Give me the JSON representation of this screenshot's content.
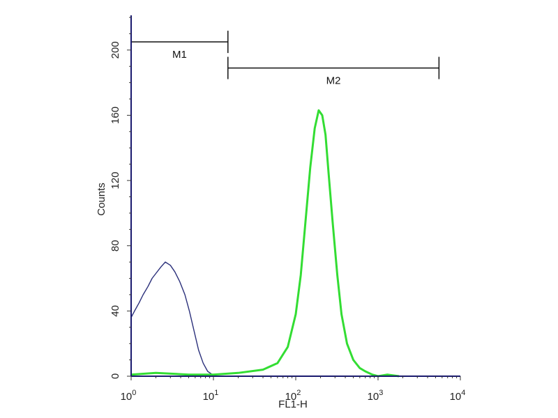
{
  "chart_data": {
    "type": "line",
    "xlabel": "FL1-H",
    "ylabel": "Counts",
    "x_scale": "log",
    "xlim": [
      1,
      10000
    ],
    "ylim": [
      0,
      220
    ],
    "x_ticks": [
      {
        "value": 1,
        "base": "10",
        "exp": "0"
      },
      {
        "value": 10,
        "base": "10",
        "exp": "1"
      },
      {
        "value": 100,
        "base": "10",
        "exp": "2"
      },
      {
        "value": 1000,
        "base": "10",
        "exp": "3"
      },
      {
        "value": 10000,
        "base": "10",
        "exp": "4"
      }
    ],
    "y_ticks": [
      "0",
      "40",
      "80",
      "120",
      "160",
      "200"
    ],
    "grid": false,
    "series": [
      {
        "color": "#2a2f7a",
        "x": [
          1.0,
          1.1,
          1.25,
          1.4,
          1.6,
          1.8,
          2.0,
          2.3,
          2.6,
          3.0,
          3.4,
          3.9,
          4.5,
          5.1,
          5.8,
          6.6,
          7.5,
          8.5,
          9.7,
          11.0,
          12.5
        ],
        "y": [
          36,
          40,
          45,
          50,
          55,
          60,
          63,
          67,
          70,
          68,
          64,
          58,
          50,
          40,
          28,
          16,
          8,
          3,
          1,
          0,
          0
        ]
      },
      {
        "color": "#33dd33",
        "x": [
          1.0,
          2.0,
          5.0,
          10.0,
          20.0,
          40.0,
          60.0,
          80.0,
          100.0,
          115.0,
          130.0,
          150.0,
          170.0,
          190.0,
          210.0,
          230.0,
          250.0,
          280.0,
          320.0,
          360.0,
          420.0,
          500.0,
          600.0,
          700.0,
          850.0,
          1000.0,
          1300.0,
          1800.0
        ],
        "y": [
          1,
          2,
          1,
          1,
          2,
          4,
          8,
          18,
          38,
          62,
          92,
          128,
          152,
          163,
          160,
          148,
          125,
          95,
          62,
          38,
          20,
          10,
          5,
          3,
          1,
          0,
          1,
          0
        ]
      }
    ],
    "markers": [
      {
        "label": "M1",
        "x_start": 1.0,
        "x_end": 15.0,
        "y": 205
      },
      {
        "label": "M2",
        "x_start": 15.0,
        "x_end": 5500.0,
        "y": 189
      }
    ]
  }
}
